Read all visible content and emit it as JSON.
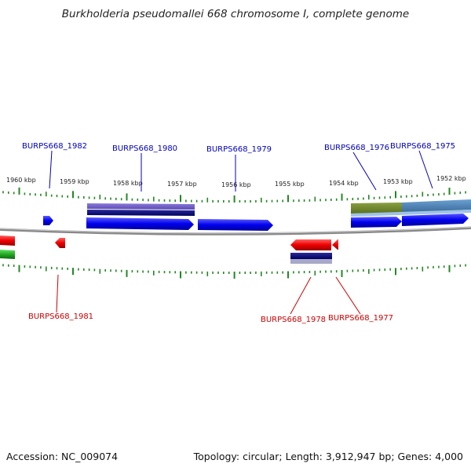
{
  "title": "Burkholderia pseudomallei 668 chromosome I, complete genome",
  "footer": {
    "accession": "Accession: NC_009074",
    "summary": "Topology: circular; Length: 3,912,947 bp; Genes: 4,000"
  },
  "colors": {
    "forward_gene": "#0000ee",
    "reverse_gene": "#ee0000",
    "forward_label": "#0000bb",
    "reverse_label": "#cc0000",
    "tick": "#228822",
    "backbone": "#888888"
  },
  "scale": {
    "labels": [
      "1960 kbp",
      "1959 kbp",
      "1958 kbp",
      "1957 kbp",
      "1956 kbp",
      "1955 kbp",
      "1954 kbp",
      "1953 kbp",
      "1952 kbp"
    ]
  },
  "forward_labels": [
    "BURPS668_1982",
    "BURPS668_1980",
    "BURPS668_1979",
    "BURPS668_1976",
    "BURPS668_1975"
  ],
  "reverse_labels": [
    "BURPS668_1981",
    "BURPS668_1978",
    "BURPS668_1977"
  ]
}
